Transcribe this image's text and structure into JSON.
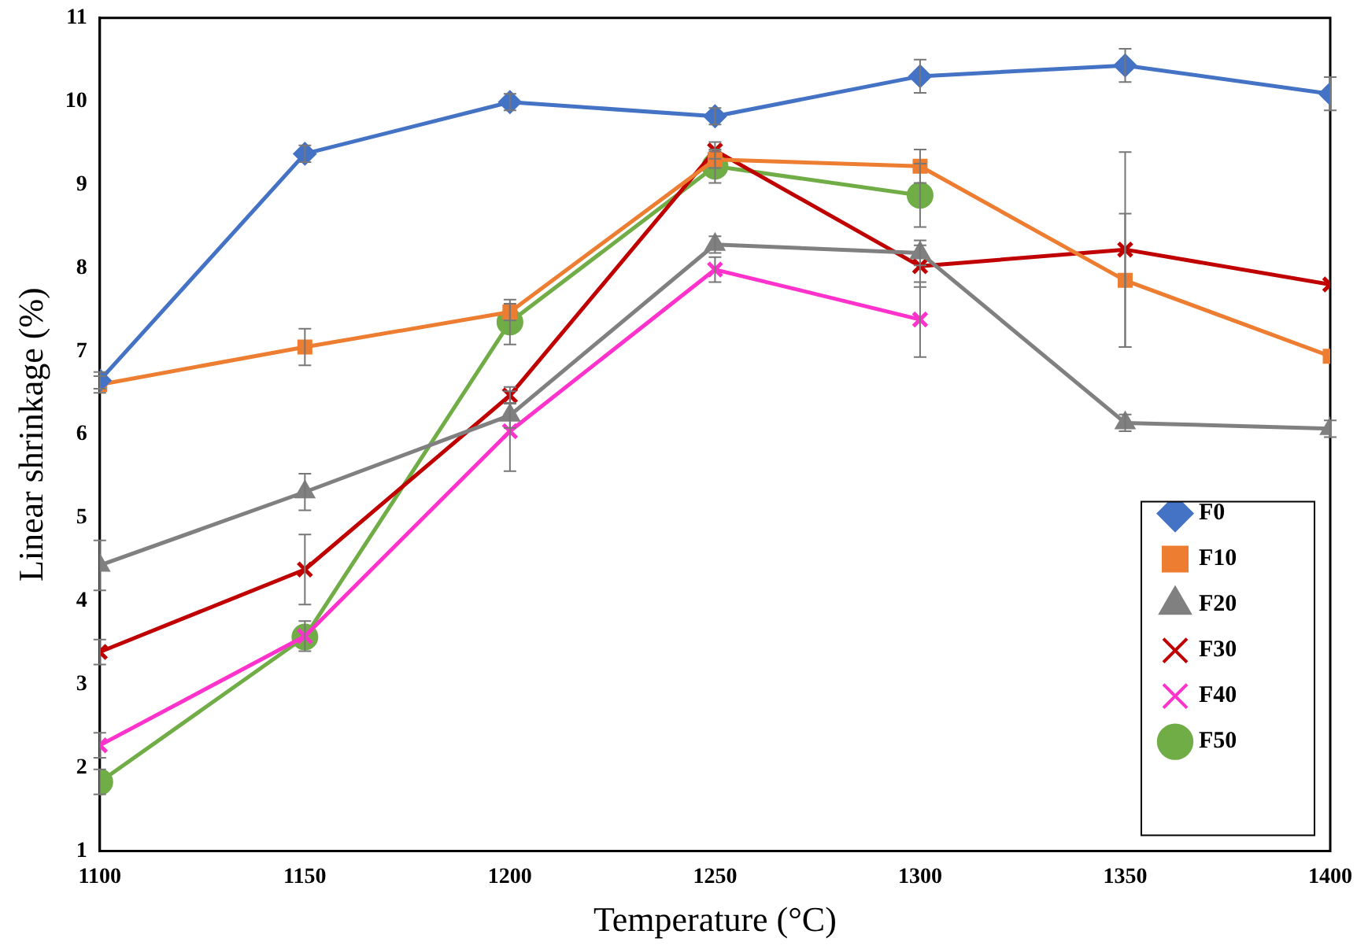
{
  "chart_data": {
    "type": "line",
    "xlabel": "Temperature (°C)",
    "ylabel": "Linear shrinkage (%)",
    "x": [
      1100,
      1150,
      1200,
      1250,
      1300,
      1350,
      1400
    ],
    "xlim": [
      1100,
      1400
    ],
    "xticks": [
      1100,
      1150,
      1200,
      1250,
      1300,
      1350,
      1400
    ],
    "ylim": [
      1,
      11
    ],
    "yticks": [
      1,
      2,
      3,
      4,
      5,
      6,
      7,
      8,
      9,
      10,
      11
    ],
    "grid": false,
    "legend": "bottom right",
    "series": [
      {
        "name": "F0",
        "color": "#4472c4",
        "marker": "diamond",
        "values": [
          6.65,
          9.37,
          9.99,
          9.82,
          10.3,
          10.43,
          10.09
        ],
        "errors": [
          0.1,
          0.1,
          0.1,
          0.1,
          0.2,
          0.2,
          0.2
        ]
      },
      {
        "name": "F10",
        "color": "#ed7d31",
        "marker": "square",
        "values": [
          6.6,
          7.05,
          7.47,
          9.3,
          9.22,
          7.85,
          6.94
        ],
        "errors": [
          0.1,
          0.22,
          0.1,
          0.1,
          0.2,
          0.8,
          null
        ]
      },
      {
        "name": "F20",
        "color": "#808080",
        "marker": "triangle",
        "values": [
          4.43,
          5.31,
          6.23,
          8.28,
          8.18,
          6.14,
          6.07
        ],
        "errors": [
          0.3,
          0.22,
          0.15,
          0.1,
          0.15,
          0.1,
          0.1
        ]
      },
      {
        "name": "F30",
        "color": "#c00000",
        "marker": "cross",
        "values": [
          3.39,
          4.38,
          6.47,
          9.41,
          8.02,
          8.22,
          7.8
        ],
        "errors": [
          0.15,
          0.42,
          0.1,
          0.1,
          0.25,
          1.17,
          null
        ]
      },
      {
        "name": "F40",
        "color": "#ff33cc",
        "marker": "cross",
        "values": [
          2.27,
          3.58,
          6.04,
          7.98,
          7.38,
          null,
          null
        ],
        "errors": [
          0.15,
          0.18,
          0.48,
          0.15,
          0.45,
          null,
          null
        ]
      },
      {
        "name": "F50",
        "color": "#70ad47",
        "marker": "circle",
        "values": [
          1.83,
          3.57,
          7.35,
          9.22,
          8.87,
          null,
          null
        ],
        "errors": [
          0.15,
          null,
          0.27,
          0.2,
          0.38,
          null,
          null
        ]
      }
    ]
  }
}
